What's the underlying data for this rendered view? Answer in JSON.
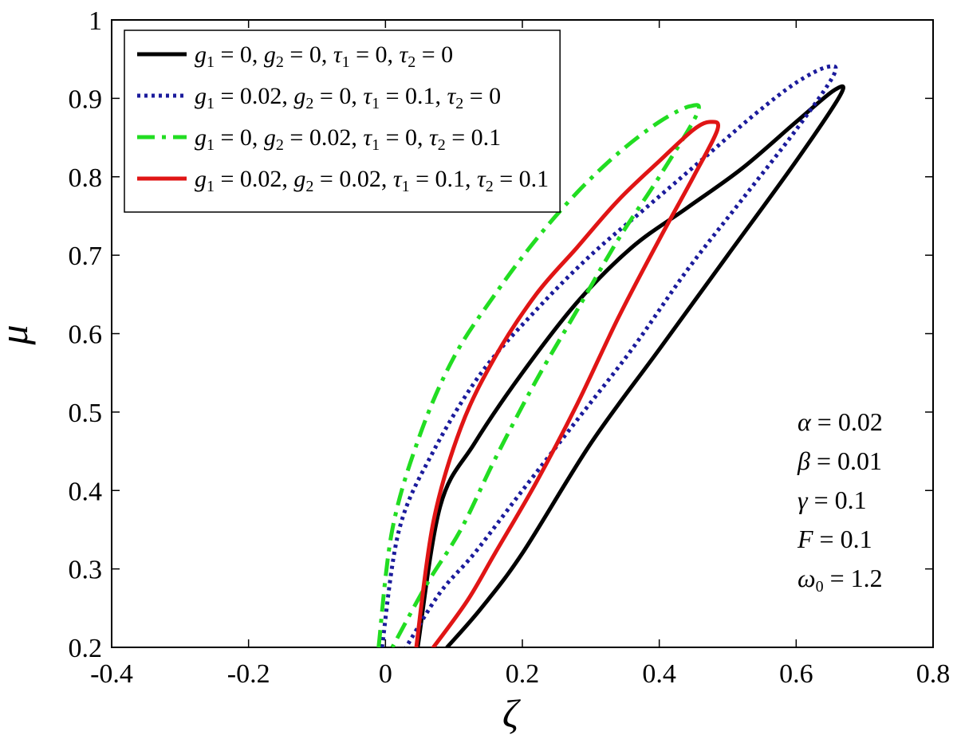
{
  "chart_data": {
    "type": "line",
    "title": "",
    "xlabel": "ζ",
    "ylabel": "μ",
    "xlim": [
      -0.4,
      0.8
    ],
    "ylim": [
      0.2,
      1.0
    ],
    "xticks": [
      "-0.4",
      "-0.2",
      "0",
      "0.2",
      "0.4",
      "0.6",
      "0.8"
    ],
    "yticks": [
      "0.2",
      "0.3",
      "0.4",
      "0.5",
      "0.6",
      "0.7",
      "0.8",
      "0.9",
      "1"
    ],
    "grid": false,
    "legend_position": "top-left",
    "series": [
      {
        "name": "g₁ = 0, g₂ = 0, τ₁ = 0, τ₂ = 0",
        "color": "#000000",
        "style": "solid",
        "upper_branch": {
          "x": [
            0.047,
            0.08,
            0.13,
            0.2,
            0.28,
            0.36,
            0.44,
            0.52,
            0.6,
            0.655
          ],
          "y": [
            0.2,
            0.38,
            0.46,
            0.55,
            0.64,
            0.71,
            0.76,
            0.81,
            0.87,
            0.91
          ]
        },
        "lower_branch": {
          "x": [
            0.665,
            0.6,
            0.5,
            0.4,
            0.3,
            0.2,
            0.14,
            0.09
          ],
          "y": [
            0.905,
            0.82,
            0.7,
            0.58,
            0.46,
            0.32,
            0.25,
            0.2
          ]
        }
      },
      {
        "name": "g₁ = 0.02, g₂ = 0, τ₁ = 0.1, τ₂ = 0",
        "color": "#1b1b9c",
        "style": "dotted",
        "upper_branch": {
          "x": [
            -0.005,
            0.02,
            0.07,
            0.14,
            0.22,
            0.3,
            0.38,
            0.46,
            0.54,
            0.6,
            0.645
          ],
          "y": [
            0.2,
            0.35,
            0.45,
            0.55,
            0.63,
            0.7,
            0.76,
            0.82,
            0.88,
            0.92,
            0.94
          ]
        },
        "lower_branch": {
          "x": [
            0.655,
            0.6,
            0.52,
            0.44,
            0.36,
            0.28,
            0.2,
            0.13,
            0.08,
            0.03
          ],
          "y": [
            0.93,
            0.86,
            0.77,
            0.68,
            0.58,
            0.49,
            0.4,
            0.32,
            0.27,
            0.2
          ]
        }
      },
      {
        "name": "g₁ = 0, g₂ = 0.02, τ₁ = 0, τ₂ = 0.1",
        "color": "#22dd22",
        "style": "dashdot",
        "upper_branch": {
          "x": [
            -0.01,
            0.01,
            0.05,
            0.1,
            0.16,
            0.22,
            0.28,
            0.34,
            0.4,
            0.445
          ],
          "y": [
            0.2,
            0.35,
            0.47,
            0.57,
            0.65,
            0.72,
            0.78,
            0.83,
            0.87,
            0.89
          ]
        },
        "lower_branch": {
          "x": [
            0.455,
            0.4,
            0.34,
            0.28,
            0.22,
            0.16,
            0.11,
            0.06,
            0.01
          ],
          "y": [
            0.88,
            0.8,
            0.72,
            0.63,
            0.54,
            0.44,
            0.35,
            0.28,
            0.2
          ]
        }
      },
      {
        "name": "g₁ = 0.02, g₂ = 0.02, τ₁ = 0.1, τ₂ = 0.1",
        "color": "#e01515",
        "style": "solid",
        "upper_branch": {
          "x": [
            0.045,
            0.07,
            0.11,
            0.16,
            0.22,
            0.28,
            0.34,
            0.4,
            0.45,
            0.475
          ],
          "y": [
            0.2,
            0.36,
            0.48,
            0.57,
            0.65,
            0.71,
            0.77,
            0.82,
            0.86,
            0.87
          ]
        },
        "lower_branch": {
          "x": [
            0.485,
            0.45,
            0.4,
            0.34,
            0.28,
            0.22,
            0.16,
            0.12,
            0.07
          ],
          "y": [
            0.86,
            0.8,
            0.72,
            0.62,
            0.51,
            0.41,
            0.32,
            0.26,
            0.2
          ]
        }
      }
    ],
    "legend": [
      {
        "g1": "0",
        "g2": "0",
        "t1": "0",
        "t2": "0"
      },
      {
        "g1": "0.02",
        "g2": "0",
        "t1": "0.1",
        "t2": "0"
      },
      {
        "g1": "0",
        "g2": "0.02",
        "t1": "0",
        "t2": "0.1"
      },
      {
        "g1": "0.02",
        "g2": "0.02",
        "t1": "0.1",
        "t2": "0.1"
      }
    ],
    "annotations": [
      {
        "sym": "α",
        "sub": "",
        "value": "0.02"
      },
      {
        "sym": "β",
        "sub": "",
        "value": "0.01"
      },
      {
        "sym": "γ",
        "sub": "",
        "value": "0.1"
      },
      {
        "sym": "F",
        "sub": "",
        "value": "0.1"
      },
      {
        "sym": "ω",
        "sub": "0",
        "value": "1.2"
      }
    ]
  }
}
